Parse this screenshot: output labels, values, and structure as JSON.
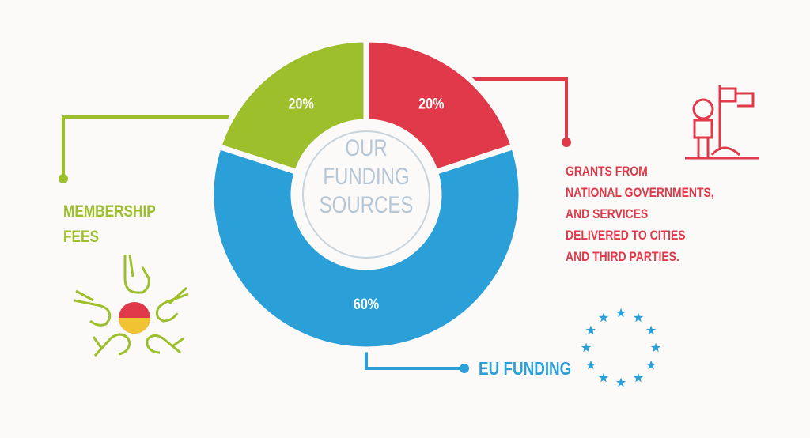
{
  "chart_data": {
    "type": "donut",
    "center_title": "OUR\nFUNDING\nSOURCES",
    "categories": [
      "GRANTS FROM\nNATIONAL GOVERNMENTS,\nAND SERVICES\nDELIVERED TO CITIES\nAND THIRD PARTIES.",
      "EU FUNDING",
      "MEMBERSHIP\nFEES"
    ],
    "values": [
      20,
      60,
      20
    ],
    "value_labels": [
      "20%",
      "60%",
      "20%"
    ],
    "colors": [
      "#e03a4a",
      "#2a9fd8",
      "#9cbf2b"
    ]
  }
}
